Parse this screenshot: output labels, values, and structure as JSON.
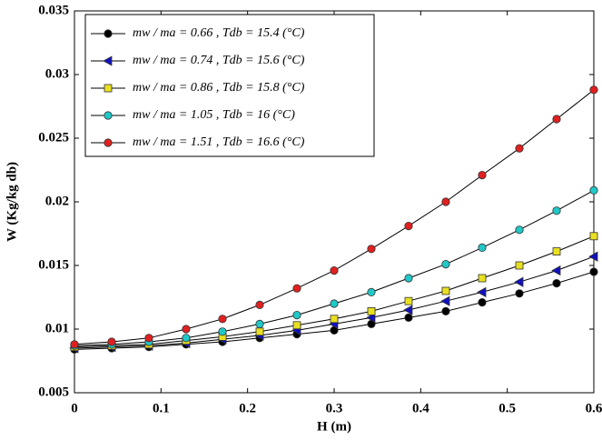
{
  "chart_data": {
    "type": "line",
    "xlabel": "H (m)",
    "ylabel": "W (Kg/kg db)",
    "xlim": [
      0,
      0.6
    ],
    "ylim": [
      0.005,
      0.035
    ],
    "xticks": [
      0,
      0.1,
      0.2,
      0.3,
      0.4,
      0.5,
      0.6
    ],
    "yticks": [
      0.005,
      0.01,
      0.015,
      0.02,
      0.025,
      0.03,
      0.035
    ],
    "legend": "upper-left",
    "x": [
      0,
      0.043,
      0.086,
      0.129,
      0.171,
      0.214,
      0.257,
      0.3,
      0.343,
      0.386,
      0.429,
      0.471,
      0.514,
      0.557,
      0.6
    ],
    "series": [
      {
        "name": "mw / ma = 0.66 ,  Tdb = 15.4 (°C)",
        "color": "#000000",
        "marker": "circle",
        "values": [
          0.0084,
          0.0085,
          0.0086,
          0.0088,
          0.009,
          0.0093,
          0.0096,
          0.0099,
          0.0104,
          0.0109,
          0.0114,
          0.0121,
          0.0128,
          0.0136,
          0.0145
        ]
      },
      {
        "name": "mw / ma = 0.74 ,  Tdb = 15.6 (°C)",
        "color": "#1010c0",
        "marker": "triangle-left",
        "values": [
          0.0085,
          0.0086,
          0.0087,
          0.0089,
          0.0092,
          0.0095,
          0.0099,
          0.0104,
          0.0109,
          0.0115,
          0.0122,
          0.0129,
          0.0137,
          0.0146,
          0.0157
        ]
      },
      {
        "name": "mw / ma = 0.86 ,  Tdb = 15.8 (°C)",
        "color": "#e8e020",
        "marker": "square",
        "values": [
          0.0086,
          0.0087,
          0.0088,
          0.0091,
          0.0094,
          0.0098,
          0.0103,
          0.0108,
          0.0114,
          0.0122,
          0.013,
          0.014,
          0.015,
          0.0161,
          0.0173
        ]
      },
      {
        "name": "mw / ma = 1.05 ,  Tdb = 16     (°C)",
        "color": "#20c8c8",
        "marker": "circle",
        "values": [
          0.0087,
          0.0088,
          0.009,
          0.0093,
          0.0098,
          0.0104,
          0.0111,
          0.012,
          0.0129,
          0.014,
          0.0151,
          0.0164,
          0.0178,
          0.0193,
          0.0209
        ]
      },
      {
        "name": "mw / ma = 1.51 ,  Tdb = 16.6 (°C)",
        "color": "#e02020",
        "marker": "circle",
        "values": [
          0.0088,
          0.009,
          0.0093,
          0.01,
          0.0108,
          0.0119,
          0.0132,
          0.0146,
          0.0163,
          0.0181,
          0.02,
          0.0221,
          0.0242,
          0.0265,
          0.0288
        ]
      }
    ]
  }
}
